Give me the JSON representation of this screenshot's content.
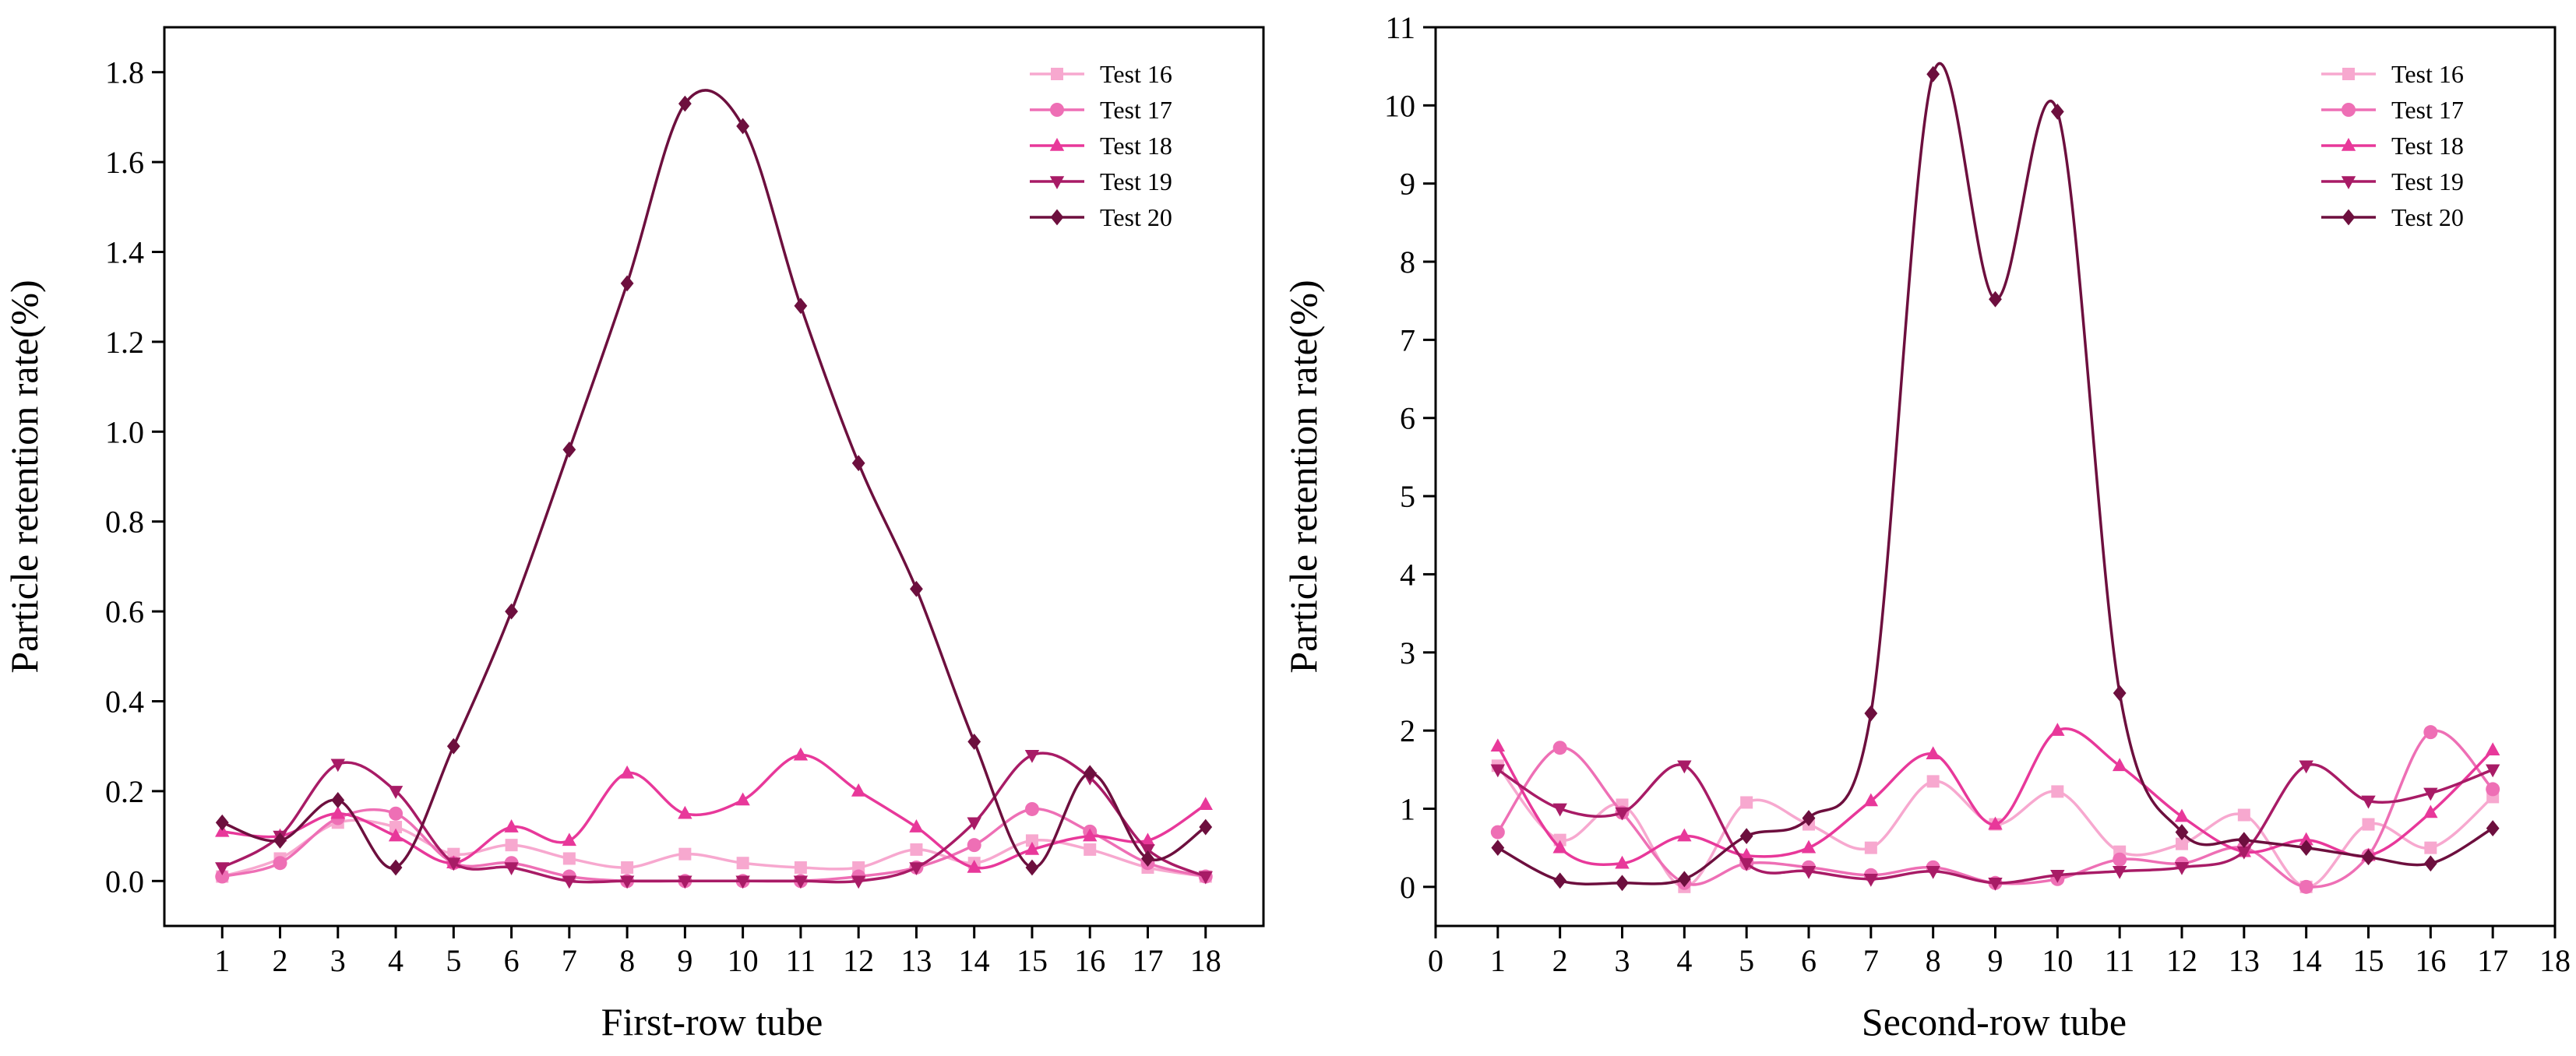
{
  "chart_data": [
    {
      "type": "line",
      "xlabel": "First-row tube",
      "ylabel": "Particle retention rate(%)",
      "xlim": [
        0,
        19
      ],
      "ylim": [
        -0.1,
        1.9
      ],
      "x_ticks": [
        1,
        2,
        3,
        4,
        5,
        6,
        7,
        8,
        9,
        10,
        11,
        12,
        13,
        14,
        15,
        16,
        17,
        18
      ],
      "y_ticks": [
        0.0,
        0.2,
        0.4,
        0.6,
        0.8,
        1.0,
        1.2,
        1.4,
        1.6,
        1.8
      ],
      "y_tick_labels": [
        "0.0",
        "0.2",
        "0.4",
        "0.6",
        "0.8",
        "1.0",
        "1.2",
        "1.4",
        "1.6",
        "1.8"
      ],
      "legend_position": "top-right",
      "x": [
        1,
        2,
        3,
        4,
        5,
        6,
        7,
        8,
        9,
        10,
        11,
        12,
        13,
        14,
        15,
        16,
        17,
        18
      ],
      "series": [
        {
          "name": "Test 16",
          "color": "#f7a8cf",
          "marker": "square",
          "values": [
            0.01,
            0.05,
            0.13,
            0.12,
            0.06,
            0.08,
            0.05,
            0.03,
            0.06,
            0.04,
            0.03,
            0.03,
            0.07,
            0.04,
            0.09,
            0.07,
            0.03,
            0.01
          ]
        },
        {
          "name": "Test 17",
          "color": "#ee6fb5",
          "marker": "circle",
          "values": [
            0.01,
            0.04,
            0.14,
            0.15,
            0.04,
            0.04,
            0.01,
            0.0,
            0.0,
            0.0,
            0.0,
            0.01,
            0.03,
            0.08,
            0.16,
            0.11,
            0.04,
            0.01
          ]
        },
        {
          "name": "Test 18",
          "color": "#e8389a",
          "marker": "triangle-up",
          "values": [
            0.11,
            0.1,
            0.15,
            0.1,
            0.04,
            0.12,
            0.09,
            0.24,
            0.15,
            0.18,
            0.28,
            0.2,
            0.12,
            0.03,
            0.07,
            0.1,
            0.09,
            0.17
          ]
        },
        {
          "name": "Test 19",
          "color": "#a81b66",
          "marker": "triangle-down",
          "values": [
            0.03,
            0.1,
            0.26,
            0.2,
            0.04,
            0.03,
            0.0,
            0.0,
            0.0,
            0.0,
            0.0,
            0.0,
            0.03,
            0.13,
            0.28,
            0.23,
            0.07,
            0.01
          ]
        },
        {
          "name": "Test 20",
          "color": "#6d0f3e",
          "marker": "diamond",
          "values": [
            0.13,
            0.09,
            0.18,
            0.03,
            0.3,
            0.6,
            0.96,
            1.33,
            1.73,
            1.68,
            1.28,
            0.93,
            0.65,
            0.31,
            0.03,
            0.24,
            0.05,
            0.12
          ]
        }
      ]
    },
    {
      "type": "line",
      "xlabel": "Second-row tube",
      "ylabel": "Particle retention rate(%)",
      "xlim": [
        0,
        18
      ],
      "ylim": [
        -0.5,
        11
      ],
      "x_ticks": [
        0,
        1,
        2,
        3,
        4,
        5,
        6,
        7,
        8,
        9,
        10,
        11,
        12,
        13,
        14,
        15,
        16,
        17,
        18
      ],
      "y_ticks": [
        0,
        1,
        2,
        3,
        4,
        5,
        6,
        7,
        8,
        9,
        10,
        11
      ],
      "y_tick_labels": [
        "0",
        "1",
        "2",
        "3",
        "4",
        "5",
        "6",
        "7",
        "8",
        "9",
        "10",
        "11"
      ],
      "legend_position": "top-right",
      "x": [
        1,
        2,
        3,
        4,
        5,
        6,
        7,
        8,
        9,
        10,
        11,
        12,
        13,
        14,
        15,
        16,
        17
      ],
      "series": [
        {
          "name": "Test 16",
          "color": "#f7a8cf",
          "marker": "square",
          "values": [
            1.55,
            0.6,
            1.05,
            0.0,
            1.08,
            0.8,
            0.5,
            1.35,
            0.8,
            1.22,
            0.45,
            0.55,
            0.92,
            0.0,
            0.8,
            0.5,
            1.15
          ]
        },
        {
          "name": "Test 17",
          "color": "#ee6fb5",
          "marker": "circle",
          "values": [
            0.7,
            1.78,
            0.95,
            0.05,
            0.3,
            0.25,
            0.15,
            0.25,
            0.05,
            0.1,
            0.35,
            0.3,
            0.5,
            0.0,
            0.4,
            1.98,
            1.25
          ]
        },
        {
          "name": "Test 18",
          "color": "#e8389a",
          "marker": "triangle-up",
          "values": [
            1.8,
            0.5,
            0.3,
            0.65,
            0.4,
            0.5,
            1.1,
            1.7,
            0.8,
            2.0,
            1.55,
            0.9,
            0.45,
            0.6,
            0.4,
            0.95,
            1.75
          ]
        },
        {
          "name": "Test 19",
          "color": "#a81b66",
          "marker": "triangle-down",
          "values": [
            1.5,
            1.0,
            0.95,
            1.55,
            0.3,
            0.2,
            0.1,
            0.2,
            0.05,
            0.15,
            0.2,
            0.25,
            0.45,
            1.55,
            1.1,
            1.2,
            1.5
          ]
        },
        {
          "name": "Test 20",
          "color": "#6d0f3e",
          "marker": "diamond",
          "values": [
            0.5,
            0.08,
            0.05,
            0.1,
            0.65,
            0.88,
            2.22,
            10.4,
            7.52,
            9.92,
            2.48,
            0.7,
            0.6,
            0.5,
            0.38,
            0.3,
            0.75
          ]
        }
      ]
    }
  ]
}
